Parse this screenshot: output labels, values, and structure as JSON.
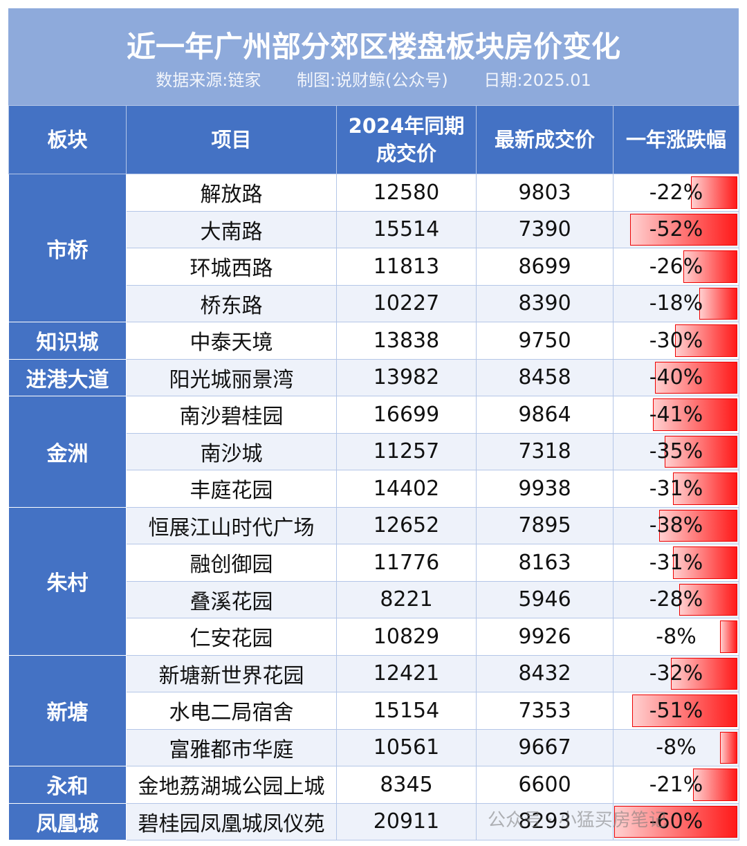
{
  "header": {
    "title": "近一年广州部分郊区楼盘板块房价变化",
    "source": "数据来源:链家",
    "maker": "制图:说财鲸(公众号)",
    "date": "日期:2025.01"
  },
  "table": {
    "columns": [
      "板块",
      "项目",
      [
        "2024年同期",
        "成交价"
      ],
      "最新成交价",
      "一年涨跌幅"
    ],
    "groups": [
      {
        "name": "市桥",
        "rows": [
          {
            "project": "解放路",
            "prev": 12580,
            "latest": 9803,
            "change": {
              "value": -22,
              "label": "-22%"
            }
          },
          {
            "project": "大南路",
            "prev": 15514,
            "latest": 7390,
            "change": {
              "value": -52,
              "label": "-52%"
            }
          },
          {
            "project": "环城西路",
            "prev": 11813,
            "latest": 8699,
            "change": {
              "value": -26,
              "label": "-26%"
            }
          },
          {
            "project": "桥东路",
            "prev": 10227,
            "latest": 8390,
            "change": {
              "value": -18,
              "label": "-18%"
            }
          }
        ]
      },
      {
        "name": "知识城",
        "rows": [
          {
            "project": "中泰天境",
            "prev": 13838,
            "latest": 9750,
            "change": {
              "value": -30,
              "label": "-30%"
            }
          }
        ]
      },
      {
        "name": "进港大道",
        "rows": [
          {
            "project": "阳光城丽景湾",
            "prev": 13982,
            "latest": 8458,
            "change": {
              "value": -40,
              "label": "-40%"
            }
          }
        ]
      },
      {
        "name": "金洲",
        "rows": [
          {
            "project": "南沙碧桂园",
            "prev": 16699,
            "latest": 9864,
            "change": {
              "value": -41,
              "label": "-41%"
            }
          },
          {
            "project": "南沙城",
            "prev": 11257,
            "latest": 7318,
            "change": {
              "value": -35,
              "label": "-35%"
            }
          },
          {
            "project": "丰庭花园",
            "prev": 14402,
            "latest": 9938,
            "change": {
              "value": -31,
              "label": "-31%"
            }
          }
        ]
      },
      {
        "name": "朱村",
        "rows": [
          {
            "project": "恒展江山时代广场",
            "prev": 12652,
            "latest": 7895,
            "change": {
              "value": -38,
              "label": "-38%"
            }
          },
          {
            "project": "融创御园",
            "prev": 11776,
            "latest": 8163,
            "change": {
              "value": -31,
              "label": "-31%"
            }
          },
          {
            "project": "叠溪花园",
            "prev": 8221,
            "latest": 5946,
            "change": {
              "value": -28,
              "label": "-28%"
            }
          },
          {
            "project": "仁安花园",
            "prev": 10829,
            "latest": 9926,
            "change": {
              "value": -8,
              "label": "-8%"
            }
          }
        ]
      },
      {
        "name": "新塘",
        "rows": [
          {
            "project": "新塘新世界花园",
            "prev": 12421,
            "latest": 8432,
            "change": {
              "value": -32,
              "label": "-32%"
            }
          },
          {
            "project": "水电二局宿舍",
            "prev": 15154,
            "latest": 7353,
            "change": {
              "value": -51,
              "label": "-51%"
            }
          },
          {
            "project": "富雅都市华庭",
            "prev": 10561,
            "latest": 9667,
            "change": {
              "value": -8,
              "label": "-8%"
            }
          }
        ]
      },
      {
        "name": "永和",
        "rows": [
          {
            "project": "金地荔湖城公园上城",
            "prev": 8345,
            "latest": 6600,
            "change": {
              "value": -21,
              "label": "-21%"
            }
          }
        ]
      },
      {
        "name": "凤凰城",
        "rows": [
          {
            "project": "碧桂园凤凰城凤仪苑",
            "prev": 20911,
            "latest": 8293,
            "change": {
              "value": -60,
              "label": "-60%"
            }
          }
        ]
      }
    ]
  },
  "watermark": "公众号 · 小猛买房笔记"
}
